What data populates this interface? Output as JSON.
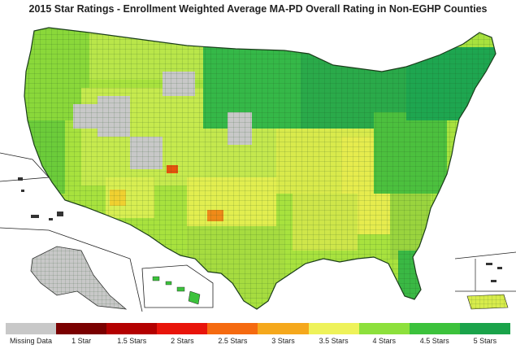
{
  "title": "2015 Star Ratings - Enrollment Weighted Average MA-PD Overall Rating in Non-EGHP Counties",
  "legend": [
    {
      "label": "Missing Data",
      "color": "#c8c8c8"
    },
    {
      "label": "1 Star",
      "color": "#7a0000"
    },
    {
      "label": "1.5 Stars",
      "color": "#b30000"
    },
    {
      "label": "2 Stars",
      "color": "#e8140a"
    },
    {
      "label": "2.5 Stars",
      "color": "#f56a10"
    },
    {
      "label": "3 Stars",
      "color": "#f5a81c"
    },
    {
      "label": "3.5 Stars",
      "color": "#eef25a"
    },
    {
      "label": "4 Stars",
      "color": "#8de03c"
    },
    {
      "label": "4.5 Stars",
      "color": "#3cc23c"
    },
    {
      "label": "5 Stars",
      "color": "#1aa34a"
    }
  ]
}
